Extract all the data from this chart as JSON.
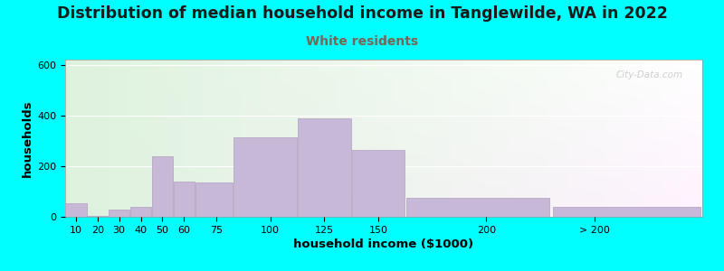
{
  "title": "Distribution of median household income in Tanglewilde, WA in 2022",
  "subtitle": "White residents",
  "xlabel": "household income ($1000)",
  "ylabel": "households",
  "background_outer": "#00FFFF",
  "bar_color": "#C8B8D8",
  "bar_edge_color": "#B0A0C0",
  "title_fontsize": 12.5,
  "subtitle_fontsize": 10,
  "subtitle_color": "#776655",
  "xlabel_fontsize": 9.5,
  "ylabel_fontsize": 9.5,
  "watermark": "City-Data.com",
  "bin_edges": [
    5,
    15,
    25,
    35,
    45,
    55,
    65,
    82.5,
    112.5,
    137.5,
    162.5,
    230,
    300
  ],
  "bin_labels": [
    "10",
    "20",
    "30",
    "40",
    "50",
    "60",
    "75",
    "100",
    "125",
    "150",
    "200",
    "> 200"
  ],
  "values": [
    55,
    5,
    28,
    40,
    240,
    140,
    135,
    315,
    390,
    265,
    75,
    40
  ],
  "xlim_left": 5,
  "xlim_right": 300,
  "ylim": [
    0,
    620
  ],
  "yticks": [
    0,
    200,
    400,
    600
  ],
  "xtick_positions": [
    10,
    20,
    30,
    40,
    50,
    60,
    75,
    100,
    125,
    150,
    200,
    250
  ],
  "xtick_labels": [
    "10",
    "20",
    "30",
    "40",
    "50",
    "60",
    "75",
    "100",
    "125",
    "150",
    "200",
    "> 200"
  ]
}
